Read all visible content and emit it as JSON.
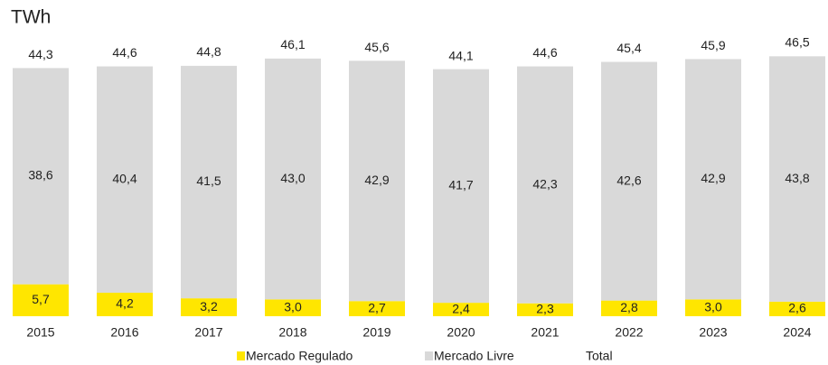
{
  "chart_data": {
    "type": "stacked_bar",
    "title": "TWh",
    "categories": [
      "2015",
      "2016",
      "2017",
      "2018",
      "2019",
      "2020",
      "2021",
      "2022",
      "2023",
      "2024"
    ],
    "series": [
      {
        "name": "Mercado Regulado",
        "color": "#FFE600",
        "values": [
          5.7,
          4.2,
          3.2,
          3.0,
          2.7,
          2.4,
          2.3,
          2.8,
          3.0,
          2.6
        ],
        "value_labels": [
          "5,7",
          "4,2",
          "3,2",
          "3,0",
          "2,7",
          "2,4",
          "2,3",
          "2,8",
          "3,0",
          "2,6"
        ]
      },
      {
        "name": "Mercado Livre",
        "color": "#D9D9D9",
        "values": [
          38.6,
          40.4,
          41.5,
          43.0,
          42.9,
          41.7,
          42.3,
          42.6,
          42.9,
          43.8
        ],
        "value_labels": [
          "38,6",
          "40,4",
          "41,5",
          "43,0",
          "42,9",
          "41,7",
          "42,3",
          "42,6",
          "42,9",
          "43,8"
        ]
      },
      {
        "name": "Total",
        "values": [
          44.3,
          44.6,
          44.8,
          46.1,
          45.6,
          44.1,
          44.6,
          45.4,
          45.9,
          46.5
        ],
        "value_labels": [
          "44,3",
          "44,6",
          "44,8",
          "46,1",
          "45,6",
          "44,1",
          "44,6",
          "45,4",
          "45,9",
          "46,5"
        ]
      }
    ]
  }
}
